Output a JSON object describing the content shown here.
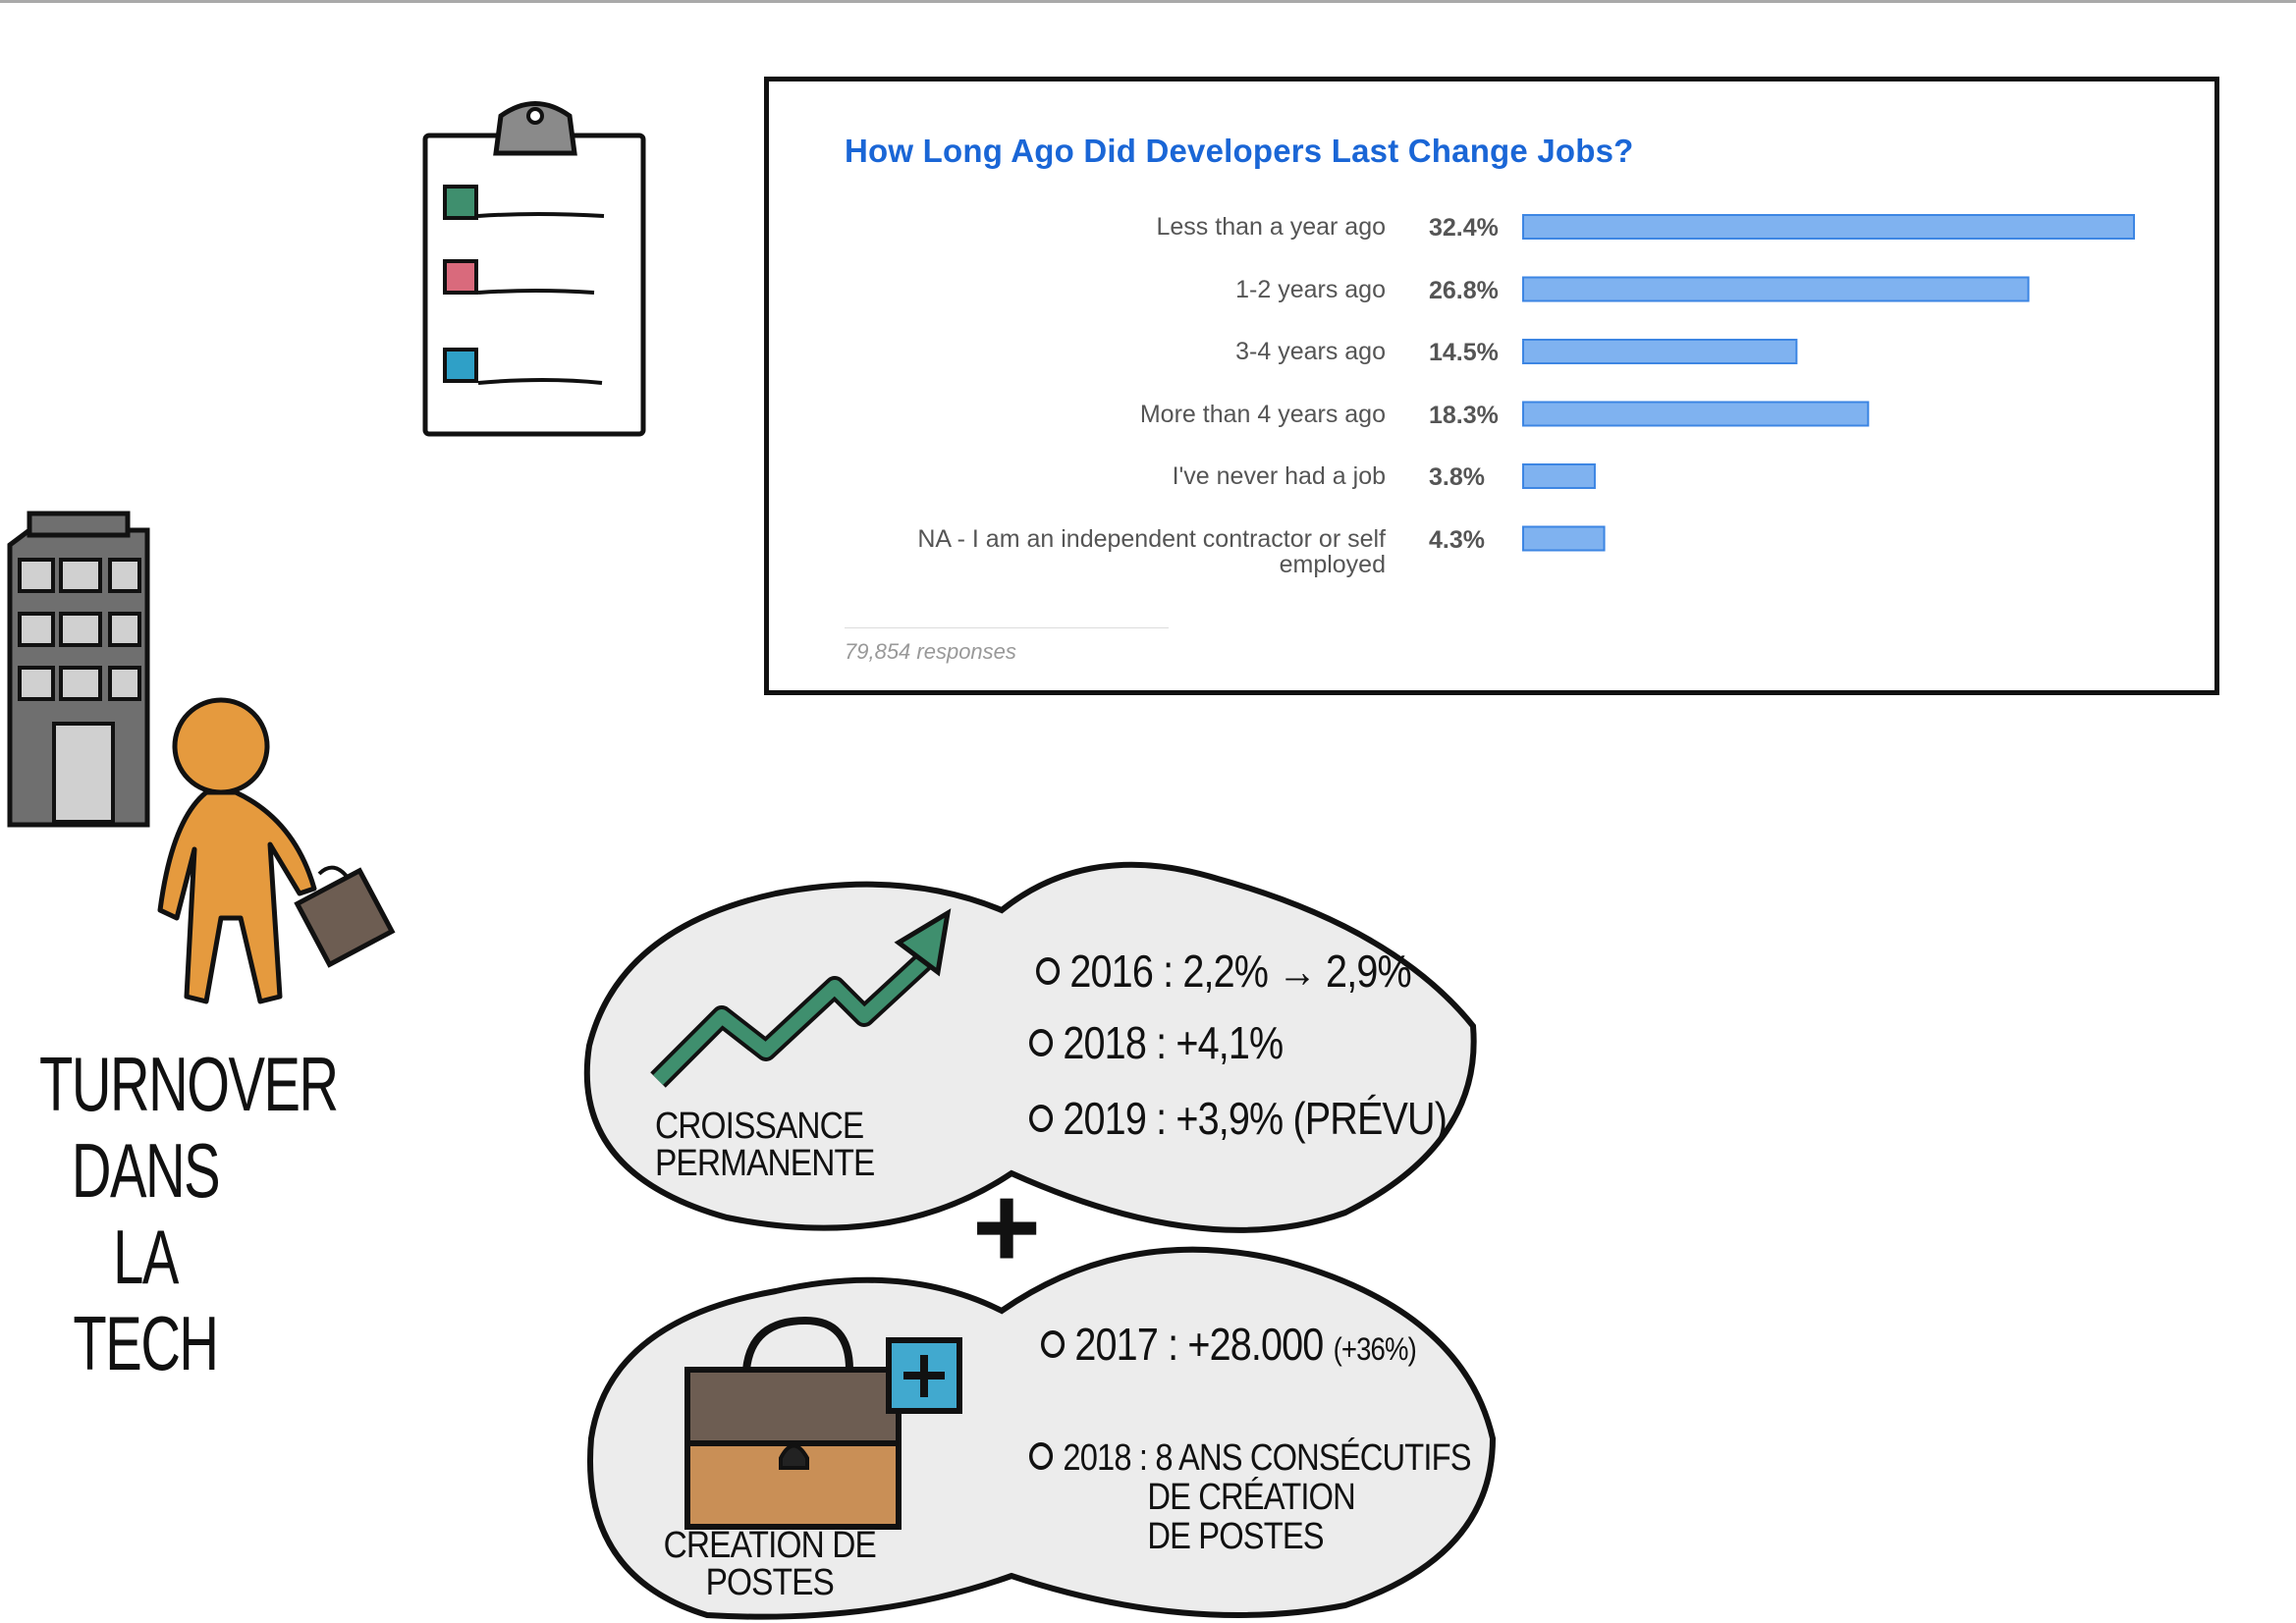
{
  "chart_data": {
    "type": "bar",
    "orientation": "horizontal",
    "title": "How Long Ago Did Developers Last Change Jobs?",
    "categories": [
      "Less than a year ago",
      "1-2 years ago",
      "3-4 years ago",
      "More than 4 years ago",
      "I've never had a job",
      "NA - I am an independent contractor or self employed"
    ],
    "values": [
      32.4,
      26.8,
      14.5,
      18.3,
      3.8,
      4.3
    ],
    "value_labels": [
      "32.4%",
      "26.8%",
      "14.5%",
      "18.3%",
      "3.8%",
      "4.3%"
    ],
    "unit": "%",
    "xlim": [
      0,
      32.4
    ],
    "grid": false,
    "responses": "79,854 responses",
    "bar_color": "#7fb2f0",
    "bar_border": "#3d86e3",
    "title_color": "#1a66d6"
  },
  "turnover": {
    "lines": [
      "TURNOVER",
      "DANS LA",
      "TECH"
    ]
  },
  "croissance": {
    "caption": [
      "CROISSANCE",
      "PERMANENTE"
    ],
    "stats": [
      "2016 : 2,2% → 2,9%",
      "2018 : +4,1%",
      "2019 : +3,9% (PRÉVU)"
    ]
  },
  "creation": {
    "caption": [
      "CRÉATION DE",
      "POSTES"
    ],
    "stat1_main": "2017 : +28.000",
    "stat1_small": "(+36%)",
    "stat2": [
      "2018 : 8 ANS CONSÉCUTIFS",
      "DE CRÉATION",
      "DE POSTES"
    ]
  },
  "plus_sign": "+",
  "colors": {
    "cloud_fill": "#ececec",
    "person_skin": "#e59a3e",
    "building": "#6f6f6f",
    "arrow": "#3f8f6e",
    "briefcase_top": "#6d5d52",
    "briefcase_bottom": "#c98f56",
    "plus_box": "#41a9cf",
    "checkbox_green": "#3f8f6e",
    "checkbox_pink": "#d96a7c",
    "checkbox_blue": "#2fa0c7"
  }
}
